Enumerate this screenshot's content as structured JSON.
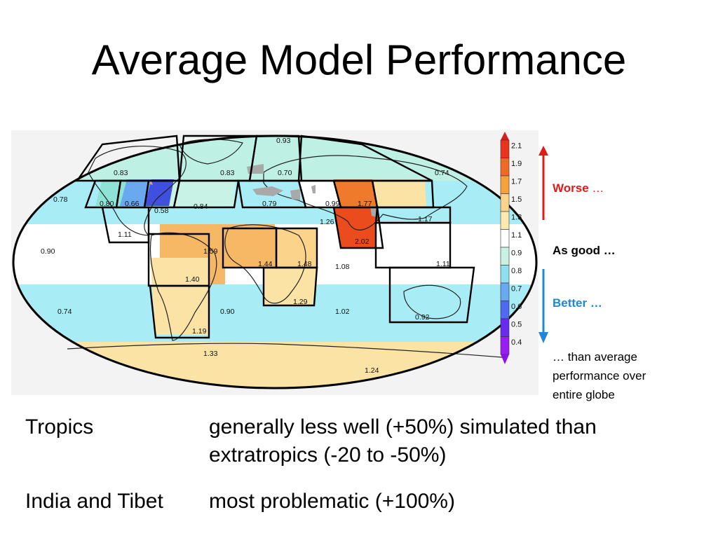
{
  "slide": {
    "title": "Average Model Performance"
  },
  "colorbar": {
    "ticks": [
      "2.1",
      "1.9",
      "1.7",
      "1.5",
      "1.3",
      "1.1",
      "0.9",
      "0.8",
      "0.7",
      "0.6",
      "0.5",
      "0.4"
    ],
    "colors": [
      "#e8331d",
      "#f06a25",
      "#f5a13c",
      "#fbd38a",
      "#fce9b2",
      "#ffffff",
      "#c8f2e6",
      "#8fdff0",
      "#68a9f0",
      "#4f6af0",
      "#6a2bf0",
      "#9a1ef0"
    ]
  },
  "legend": {
    "worse": "Worse",
    "worse_suffix": " …",
    "as_good": "As good …",
    "better": "Better …",
    "note_lines": [
      "… than average",
      "performance over",
      "entire globe"
    ],
    "colors": {
      "worse": "#e11b17",
      "better": "#1f86d8"
    }
  },
  "map": {
    "band_labels": [
      "0.83",
      "0.83",
      "0.70",
      "0.74",
      "0.93",
      "0.78",
      "0.90",
      "0.74",
      "0.90",
      "1.08",
      "1.02",
      "1.33",
      "1.24"
    ],
    "box_labels": [
      "0.80",
      "0.66",
      "0.58",
      "0.84",
      "0.79",
      "0.99",
      "1.77",
      "1.17",
      "1.11",
      "1.59",
      "1.44",
      "1.48",
      "2.02",
      "1.40",
      "1.29",
      "1.11",
      "0.92",
      "1.19",
      "1.26"
    ]
  },
  "findings": [
    {
      "region": "Tropics",
      "lines": [
        "generally less well (+50%) simulated than",
        "extratropics (-20 to -50%)"
      ]
    },
    {
      "region": "India and Tibet",
      "lines": [
        "most problematic (+100%)"
      ]
    }
  ]
}
